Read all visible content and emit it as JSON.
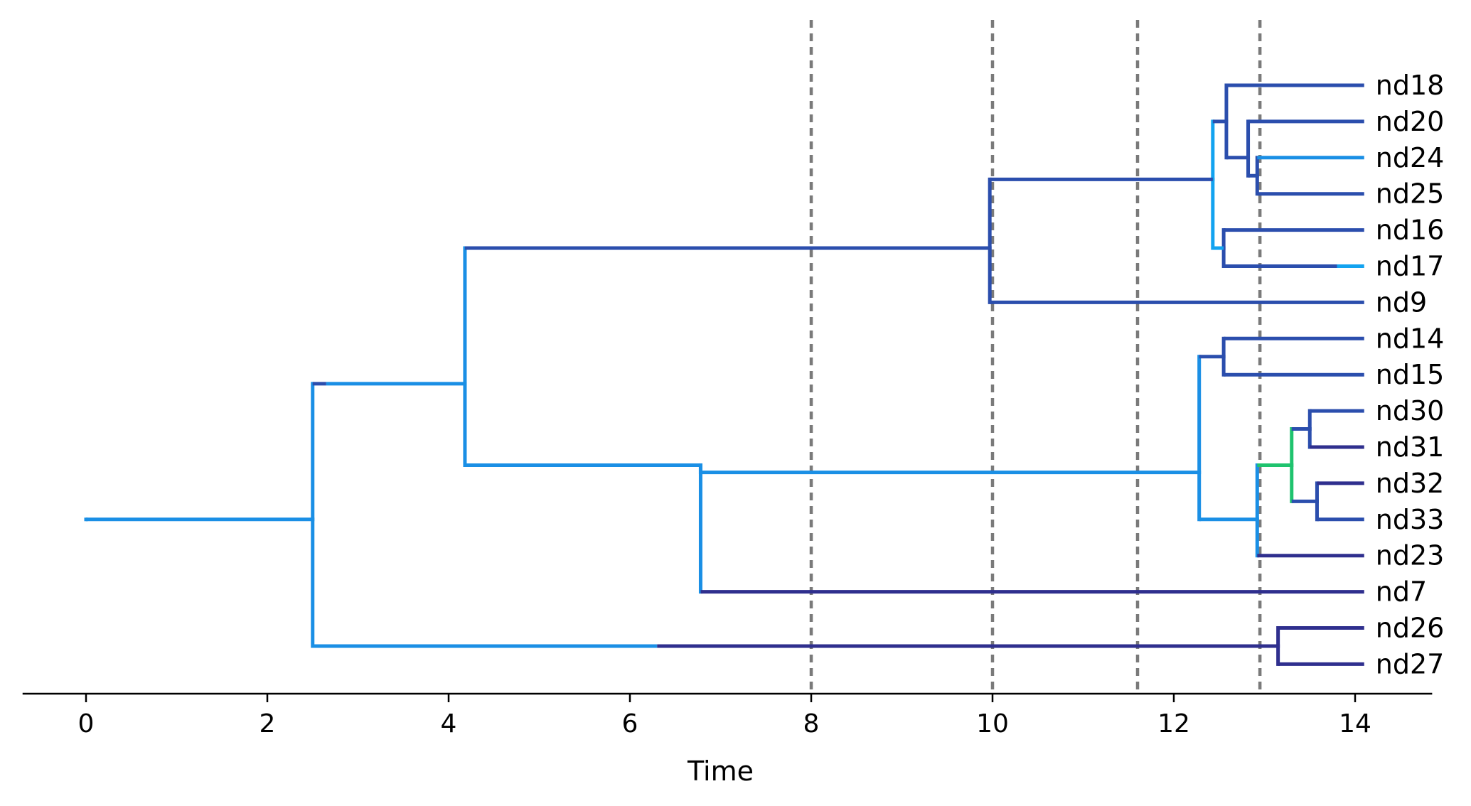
{
  "axis": {
    "xlabel": "Time",
    "ticks": [
      "0",
      "2",
      "4",
      "6",
      "8",
      "10",
      "12",
      "14"
    ],
    "tick_values": [
      0,
      2,
      4,
      6,
      8,
      10,
      12,
      14
    ],
    "xlim": [
      -0.7,
      14.85
    ]
  },
  "colors": {
    "light_blue": "#1a8fe5",
    "mid_blue": "#2b4ead",
    "dark_blue": "#2f2f8e",
    "sky_blue": "#12a3f0",
    "green": "#1fc36e",
    "axis": "#000000",
    "guide": "#7a7a7a"
  },
  "reference_times": [
    8.0,
    10.0,
    11.6,
    12.95
  ],
  "leaves": [
    {
      "name": "nd18",
      "row": 0
    },
    {
      "name": "nd20",
      "row": 1
    },
    {
      "name": "nd24",
      "row": 2
    },
    {
      "name": "nd25",
      "row": 3
    },
    {
      "name": "nd16",
      "row": 4
    },
    {
      "name": "nd17",
      "row": 5
    },
    {
      "name": "nd9",
      "row": 6
    },
    {
      "name": "nd14",
      "row": 7
    },
    {
      "name": "nd15",
      "row": 8
    },
    {
      "name": "nd30",
      "row": 9
    },
    {
      "name": "nd31",
      "row": 10
    },
    {
      "name": "nd32",
      "row": 11
    },
    {
      "name": "nd33",
      "row": 12
    },
    {
      "name": "nd23",
      "row": 13
    },
    {
      "name": "nd7",
      "row": 14
    },
    {
      "name": "nd26",
      "row": 15
    },
    {
      "name": "nd27",
      "row": 16
    }
  ],
  "leaf_time": 14.1,
  "root": {
    "time": 0.0,
    "row": 12.0
  },
  "internal_nodes": [
    {
      "id": "n_root_split",
      "time": 2.5,
      "row": 12.0,
      "children": [
        "n_a",
        "n_d"
      ]
    },
    {
      "id": "n_a",
      "time": 4.18,
      "row": 8.25,
      "children": [
        "n_b",
        "n_c"
      ]
    },
    {
      "id": "n_b",
      "time": 9.97,
      "row": 4.5,
      "children": [
        "n_e",
        "nd9"
      ]
    },
    {
      "id": "n_e",
      "time": 12.43,
      "row": 2.6,
      "children": [
        "n_f",
        "n_g"
      ]
    },
    {
      "id": "n_f",
      "time": 12.58,
      "row": 1.0,
      "children": [
        "nd18",
        "n_h"
      ]
    },
    {
      "id": "n_h",
      "time": 12.82,
      "row": 2.0,
      "children": [
        "nd20",
        "n_i"
      ]
    },
    {
      "id": "n_i",
      "time": 12.92,
      "row": 2.5,
      "children": [
        "nd24",
        "nd25"
      ]
    },
    {
      "id": "n_g",
      "time": 12.55,
      "row": 4.5,
      "children": [
        "nd16",
        "nd17"
      ]
    },
    {
      "id": "n_c",
      "time": 6.78,
      "row": 10.5,
      "children": [
        "n_j",
        "nd7"
      ]
    },
    {
      "id": "n_j",
      "time": 12.28,
      "row": 10.7,
      "children": [
        "n_k",
        "n_l"
      ]
    },
    {
      "id": "n_k",
      "time": 12.55,
      "row": 7.5,
      "children": [
        "nd14",
        "nd15"
      ]
    },
    {
      "id": "n_l",
      "time": 12.92,
      "row": 12.0,
      "children": [
        "n_m",
        "nd23"
      ]
    },
    {
      "id": "n_m",
      "time": 13.3,
      "row": 10.5,
      "children": [
        "n_n",
        "n_o"
      ]
    },
    {
      "id": "n_n",
      "time": 13.5,
      "row": 9.5,
      "children": [
        "nd30",
        "nd31"
      ]
    },
    {
      "id": "n_o",
      "time": 13.58,
      "row": 11.5,
      "children": [
        "nd32",
        "nd33"
      ]
    },
    {
      "id": "n_d",
      "time": 13.15,
      "row": 15.5,
      "children": [
        "nd26",
        "nd27"
      ]
    }
  ],
  "edges": [
    {
      "from": "root",
      "to": "n_root_split",
      "segments": [
        [
          "light_blue",
          0.0,
          2.5
        ]
      ],
      "vcolor": "light_blue"
    },
    {
      "from": "n_root_split",
      "to": "n_a",
      "segments": [
        [
          "mid_blue",
          2.5,
          2.65
        ],
        [
          "light_blue",
          2.65,
          4.18
        ]
      ],
      "vcolor": "light_blue"
    },
    {
      "from": "n_root_split",
      "to": "n_d",
      "segments": [
        [
          "light_blue",
          2.5,
          6.3
        ],
        [
          "dark_blue",
          6.3,
          13.15
        ]
      ],
      "vcolor": "light_blue"
    },
    {
      "from": "n_a",
      "to": "n_b",
      "segments": [
        [
          "mid_blue",
          4.18,
          9.97
        ]
      ],
      "vcolor": "light_blue"
    },
    {
      "from": "n_a",
      "to": "n_c",
      "segments": [
        [
          "light_blue",
          4.18,
          6.78
        ]
      ],
      "vcolor": "light_blue"
    },
    {
      "from": "n_b",
      "to": "n_e",
      "segments": [
        [
          "mid_blue",
          9.97,
          12.43
        ]
      ],
      "vcolor": "mid_blue"
    },
    {
      "from": "n_b",
      "to": "nd9",
      "segments": [
        [
          "mid_blue",
          9.97,
          14.1
        ]
      ],
      "vcolor": "mid_blue"
    },
    {
      "from": "n_e",
      "to": "n_f",
      "segments": [
        [
          "mid_blue",
          12.43,
          12.58
        ]
      ],
      "vcolor": "sky_blue"
    },
    {
      "from": "n_e",
      "to": "n_g",
      "segments": [
        [
          "sky_blue",
          12.43,
          12.55
        ]
      ],
      "vcolor": "sky_blue"
    },
    {
      "from": "n_f",
      "to": "nd18",
      "segments": [
        [
          "mid_blue",
          12.58,
          14.1
        ]
      ],
      "vcolor": "mid_blue"
    },
    {
      "from": "n_f",
      "to": "n_h",
      "segments": [
        [
          "mid_blue",
          12.58,
          12.82
        ]
      ],
      "vcolor": "mid_blue"
    },
    {
      "from": "n_h",
      "to": "nd20",
      "segments": [
        [
          "mid_blue",
          12.82,
          14.1
        ]
      ],
      "vcolor": "mid_blue"
    },
    {
      "from": "n_h",
      "to": "n_i",
      "segments": [
        [
          "mid_blue",
          12.82,
          12.92
        ]
      ],
      "vcolor": "mid_blue"
    },
    {
      "from": "n_i",
      "to": "nd24",
      "segments": [
        [
          "light_blue",
          12.92,
          14.1
        ]
      ],
      "vcolor": "mid_blue"
    },
    {
      "from": "n_i",
      "to": "nd25",
      "segments": [
        [
          "mid_blue",
          12.92,
          14.1
        ]
      ],
      "vcolor": "mid_blue"
    },
    {
      "from": "n_g",
      "to": "nd16",
      "segments": [
        [
          "mid_blue",
          12.55,
          14.1
        ]
      ],
      "vcolor": "mid_blue"
    },
    {
      "from": "n_g",
      "to": "nd17",
      "segments": [
        [
          "mid_blue",
          12.55,
          13.8
        ],
        [
          "sky_blue",
          13.8,
          14.1
        ]
      ],
      "vcolor": "mid_blue"
    },
    {
      "from": "n_c",
      "to": "n_j",
      "segments": [
        [
          "light_blue",
          6.78,
          12.28
        ]
      ],
      "vcolor": "light_blue"
    },
    {
      "from": "n_c",
      "to": "nd7",
      "segments": [
        [
          "dark_blue",
          6.78,
          14.1
        ]
      ],
      "vcolor": "light_blue"
    },
    {
      "from": "n_j",
      "to": "n_k",
      "segments": [
        [
          "mid_blue",
          12.28,
          12.55
        ]
      ],
      "vcolor": "light_blue"
    },
    {
      "from": "n_j",
      "to": "n_l",
      "segments": [
        [
          "light_blue",
          12.28,
          12.92
        ]
      ],
      "vcolor": "light_blue"
    },
    {
      "from": "n_k",
      "to": "nd14",
      "segments": [
        [
          "mid_blue",
          12.55,
          14.1
        ]
      ],
      "vcolor": "mid_blue"
    },
    {
      "from": "n_k",
      "to": "nd15",
      "segments": [
        [
          "mid_blue",
          12.55,
          14.1
        ]
      ],
      "vcolor": "mid_blue"
    },
    {
      "from": "n_l",
      "to": "n_m",
      "segments": [
        [
          "green",
          12.92,
          13.3
        ]
      ],
      "vcolor": "light_blue"
    },
    {
      "from": "n_l",
      "to": "nd23",
      "segments": [
        [
          "dark_blue",
          12.92,
          14.1
        ]
      ],
      "vcolor": "light_blue"
    },
    {
      "from": "n_m",
      "to": "n_n",
      "segments": [
        [
          "mid_blue",
          13.3,
          13.5
        ]
      ],
      "vcolor": "green"
    },
    {
      "from": "n_m",
      "to": "n_o",
      "segments": [
        [
          "mid_blue",
          13.3,
          13.58
        ]
      ],
      "vcolor": "green"
    },
    {
      "from": "n_n",
      "to": "nd30",
      "segments": [
        [
          "mid_blue",
          13.5,
          14.1
        ]
      ],
      "vcolor": "mid_blue"
    },
    {
      "from": "n_n",
      "to": "nd31",
      "segments": [
        [
          "dark_blue",
          13.5,
          14.1
        ]
      ],
      "vcolor": "mid_blue"
    },
    {
      "from": "n_o",
      "to": "nd32",
      "segments": [
        [
          "dark_blue",
          13.58,
          14.1
        ]
      ],
      "vcolor": "mid_blue"
    },
    {
      "from": "n_o",
      "to": "nd33",
      "segments": [
        [
          "mid_blue",
          13.58,
          14.1
        ]
      ],
      "vcolor": "mid_blue"
    },
    {
      "from": "n_d",
      "to": "nd26",
      "segments": [
        [
          "dark_blue",
          13.15,
          14.1
        ]
      ],
      "vcolor": "dark_blue"
    },
    {
      "from": "n_d",
      "to": "nd27",
      "segments": [
        [
          "dark_blue",
          13.15,
          14.1
        ]
      ],
      "vcolor": "dark_blue"
    }
  ]
}
